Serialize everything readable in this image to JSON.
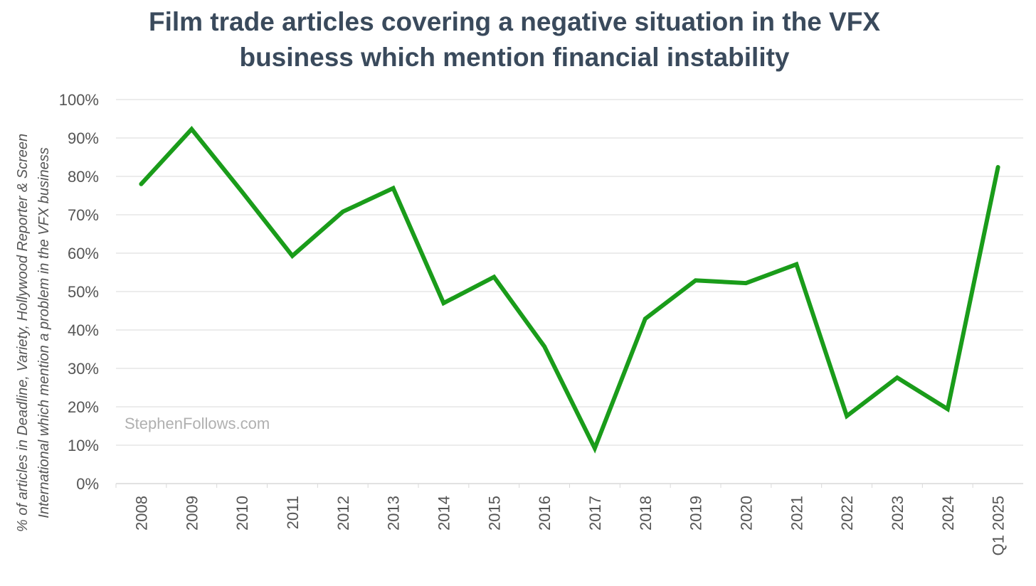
{
  "chart_data": {
    "type": "line",
    "title_lines": [
      "Film trade articles covering a negative situation in the VFX",
      "business which mention financial instability"
    ],
    "ylabel_lines": [
      "% of articles in Deadline, Variety, Hollywood Reporter & Screen",
      "International which mention a problem in the VFX business"
    ],
    "xlabel": "",
    "categories": [
      "2008",
      "2009",
      "2010",
      "2011",
      "2012",
      "2013",
      "2014",
      "2015",
      "2016",
      "2017",
      "2018",
      "2019",
      "2020",
      "2021",
      "2022",
      "2023",
      "2024",
      "Q1 2025"
    ],
    "series": [
      {
        "color": "#1a9c1a",
        "values": [
          78,
          92.3,
          76,
          59.3,
          70.8,
          76.9,
          47,
          53.8,
          35.7,
          9.2,
          42.9,
          52.9,
          52.2,
          57.1,
          17.6,
          27.6,
          19.4,
          82.4
        ]
      }
    ],
    "ylim": [
      0,
      100
    ],
    "yticks": [
      "0%",
      "10%",
      "20%",
      "30%",
      "40%",
      "50%",
      "60%",
      "70%",
      "80%",
      "90%",
      "100%"
    ],
    "grid": true,
    "legend": "none",
    "watermark": "StephenFollows.com",
    "colors": {
      "title": "#3a4a5c",
      "grid": "#d9d9d9",
      "text": "#555555",
      "watermark": "#b0b0b0"
    }
  }
}
